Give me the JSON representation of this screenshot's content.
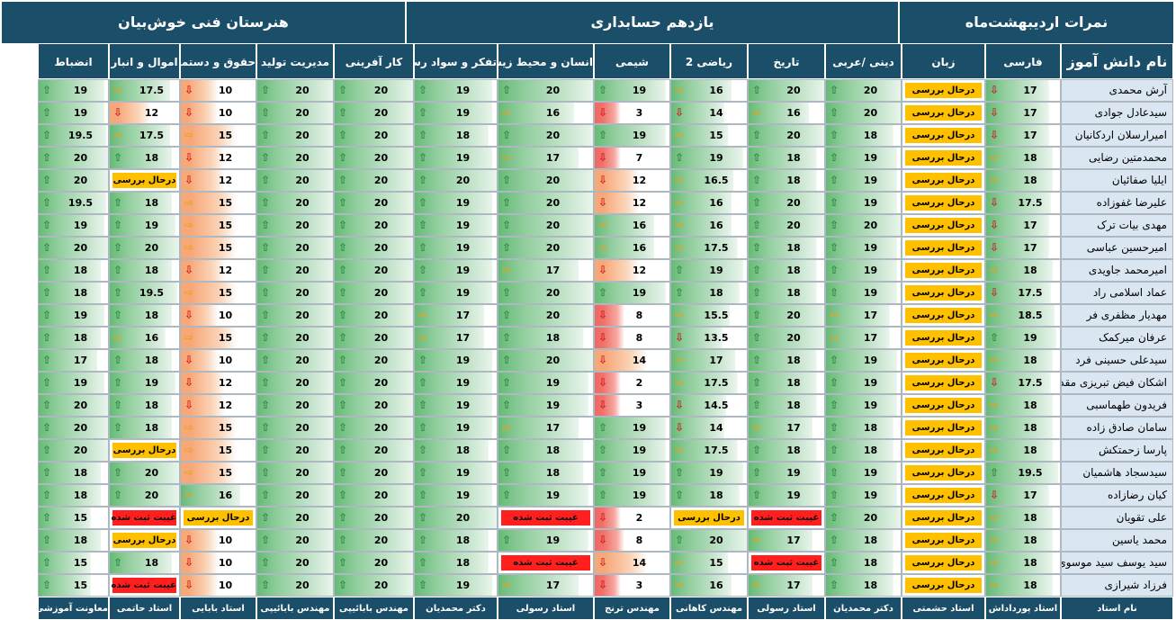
{
  "groups": [
    {
      "label": "نمرات اردیبهشت‌ماه"
    },
    {
      "label": "یازدهم حسابداری"
    },
    {
      "label": "هنرستان فنی خوش‌بیان"
    }
  ],
  "columns": [
    {
      "key": "name",
      "label": "نام دانش آموز"
    },
    {
      "key": "farsi",
      "label": "فارسی"
    },
    {
      "key": "zaban",
      "label": "زبان"
    },
    {
      "key": "dini",
      "label": "دینی /عربی"
    },
    {
      "key": "tarikh",
      "label": "تاریخ"
    },
    {
      "key": "riazi",
      "label": "ریاضی 2"
    },
    {
      "key": "shimi",
      "label": "شیمی"
    },
    {
      "key": "ensan",
      "label": "انسان و محیط زیست"
    },
    {
      "key": "tafakor",
      "label": "تفکر و سواد رسانه"
    },
    {
      "key": "karafarini",
      "label": "کار آفرینی"
    },
    {
      "key": "modiriat",
      "label": "مدیریت تولید"
    },
    {
      "key": "hoghogh",
      "label": "حقوق و دستمزد"
    },
    {
      "key": "amval",
      "label": "اموال و انبار"
    },
    {
      "key": "enzebat",
      "label": "انضباط"
    }
  ],
  "tags": {
    "pending": "درحال بررسی",
    "absent": "غیبت ثبت شده"
  },
  "students": [
    {
      "name": "آرش محمدی",
      "cells": [
        "17",
        "P",
        "20",
        "20",
        "16",
        "19",
        "20",
        "19",
        "20",
        "20",
        "10",
        "17.5",
        "19"
      ]
    },
    {
      "name": "سیدعادل جوادی",
      "cells": [
        "17",
        "P",
        "20",
        "16",
        "14",
        "3",
        "16",
        "19",
        "20",
        "20",
        "10",
        "12",
        "19"
      ]
    },
    {
      "name": "امیرارسلان اردکانیان",
      "cells": [
        "17",
        "P",
        "18",
        "20",
        "15",
        "19",
        "20",
        "18",
        "20",
        "20",
        "15",
        "17.5",
        "19.5"
      ]
    },
    {
      "name": "محمدمتین رضایی",
      "cells": [
        "18",
        "P",
        "19",
        "18",
        "19",
        "7",
        "17",
        "19",
        "20",
        "20",
        "12",
        "18",
        "20"
      ]
    },
    {
      "name": "ایلیا صفائیان",
      "cells": [
        "18",
        "P",
        "19",
        "18",
        "16.5",
        "12",
        "20",
        "20",
        "20",
        "20",
        "12",
        "P",
        "20"
      ]
    },
    {
      "name": "علیرضا غفوزاده",
      "cells": [
        "17.5",
        "P",
        "19",
        "20",
        "16",
        "12",
        "20",
        "19",
        "20",
        "20",
        "15",
        "18",
        "19.5"
      ]
    },
    {
      "name": "مهدی بیات ترک",
      "cells": [
        "17",
        "P",
        "20",
        "20",
        "16",
        "16",
        "20",
        "19",
        "20",
        "20",
        "15",
        "19",
        "19"
      ]
    },
    {
      "name": "امیرحسین عباسی",
      "cells": [
        "17",
        "P",
        "19",
        "18",
        "17.5",
        "16",
        "20",
        "19",
        "20",
        "20",
        "15",
        "20",
        "20"
      ]
    },
    {
      "name": "امیرمحمد جاویدی",
      "cells": [
        "18",
        "P",
        "19",
        "18",
        "19",
        "12",
        "17",
        "19",
        "20",
        "20",
        "12",
        "18",
        "18"
      ]
    },
    {
      "name": "عماد اسلامی راد",
      "cells": [
        "17.5",
        "P",
        "19",
        "18",
        "18",
        "19",
        "20",
        "19",
        "20",
        "20",
        "15",
        "19.5",
        "18"
      ]
    },
    {
      "name": "مهدیار مظفری فر",
      "cells": [
        "18.5",
        "P",
        "17",
        "20",
        "15.5",
        "8",
        "20",
        "17",
        "20",
        "20",
        "10",
        "18",
        "19"
      ]
    },
    {
      "name": "عرفان میرکمک",
      "cells": [
        "19",
        "P",
        "17",
        "20",
        "13.5",
        "8",
        "18",
        "17",
        "20",
        "20",
        "15",
        "16",
        "18"
      ]
    },
    {
      "name": "سیدعلی حسینی فرد",
      "cells": [
        "18",
        "P",
        "19",
        "18",
        "17",
        "14",
        "20",
        "19",
        "20",
        "20",
        "10",
        "18",
        "17"
      ]
    },
    {
      "name": "اشکان فیض تبریزی مقدم",
      "cells": [
        "17.5",
        "P",
        "19",
        "18",
        "17.5",
        "2",
        "19",
        "19",
        "20",
        "20",
        "12",
        "19",
        "19"
      ]
    },
    {
      "name": "فریدون طهماسبی",
      "cells": [
        "18",
        "P",
        "19",
        "18",
        "14.5",
        "3",
        "19",
        "19",
        "20",
        "20",
        "12",
        "18",
        "20"
      ]
    },
    {
      "name": "سامان صادق زاده",
      "cells": [
        "18",
        "P",
        "18",
        "17",
        "14",
        "19",
        "17",
        "19",
        "20",
        "20",
        "15",
        "18",
        "20"
      ]
    },
    {
      "name": "پارسا زحمتکش",
      "cells": [
        "18",
        "P",
        "18",
        "18",
        "17.5",
        "19",
        "18",
        "18",
        "20",
        "20",
        "15",
        "P",
        "20"
      ]
    },
    {
      "name": "سیدسجاد هاشمیان",
      "cells": [
        "19.5",
        "P",
        "19",
        "19",
        "19",
        "19",
        "18",
        "19",
        "20",
        "20",
        "15",
        "20",
        "18"
      ]
    },
    {
      "name": "کیان رضازاده",
      "cells": [
        "17",
        "P",
        "19",
        "19",
        "18",
        "19",
        "19",
        "19",
        "20",
        "20",
        "16",
        "20",
        "18"
      ]
    },
    {
      "name": "علی  تقویان",
      "cells": [
        "18",
        "P",
        "20",
        "A",
        "P",
        "2",
        "A",
        "20",
        "20",
        "20",
        "P",
        "A",
        "15"
      ]
    },
    {
      "name": "محمد  یاسین",
      "cells": [
        "18",
        "P",
        "18",
        "17",
        "20",
        "8",
        "19",
        "18",
        "20",
        "20",
        "10",
        "P",
        "18"
      ]
    },
    {
      "name": "سید یوسف سید موسوی",
      "cells": [
        "18",
        "P",
        "18",
        "A",
        "15",
        "14",
        "A",
        "18",
        "20",
        "20",
        "10",
        "18",
        "15"
      ]
    },
    {
      "name": "فرزاد شیرازی",
      "cells": [
        "18",
        "P",
        "18",
        "17",
        "16",
        "3",
        "17",
        "19",
        "20",
        "20",
        "10",
        "A",
        "15"
      ]
    }
  ],
  "teachers": [
    "نام استاد",
    "استاد پورداداش",
    "استاد حشمتی",
    "دکتر محمدیان",
    "استاد رسولی",
    "مهندس کاهانی",
    "مهندس ترنج",
    "استاد رسولی",
    "دکتر محمدیان",
    "مهندس بابائیپی",
    "مهندس بابائیپی",
    "استاد بابایی",
    "استاد حاتمی",
    "معاونت آموزشی"
  ]
}
